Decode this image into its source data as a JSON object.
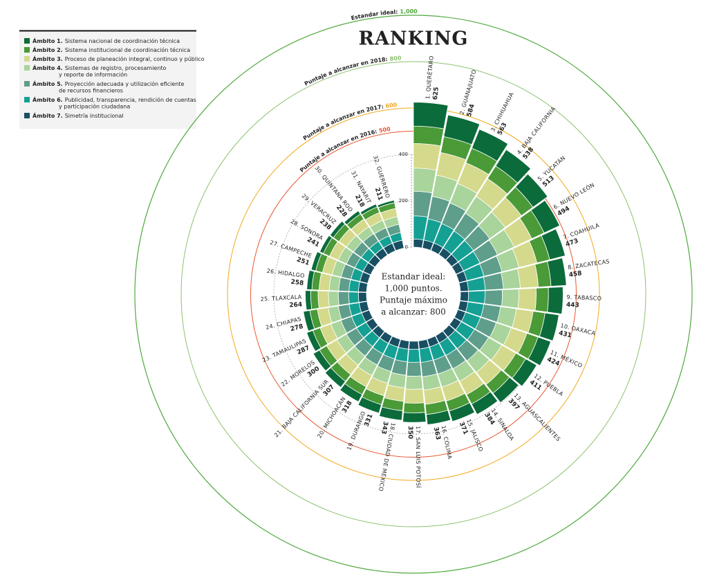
{
  "chart_data": {
    "type": "radial_stacked_bar",
    "title": "RANKING",
    "center_text": [
      "Estandar ideal:",
      "1,000 puntos.",
      "Puntaje máximo",
      "a alcanzar: 800"
    ],
    "categories": [
      "1. QUERÉTARO",
      "2. GUANAJUATO",
      "3. CHIHUAHUA",
      "4. BAJA CALIFORNIA",
      "5. YUCATÁN",
      "6. NUEVO LEÓN",
      "7. COAHUILA",
      "8. ZACATECAS",
      "9. TABASCO",
      "10. OAXACA",
      "11. MÉXICO",
      "12. PUEBLA",
      "13. AGUASCALIENTES",
      "14. SINALOA",
      "15. JALISCO",
      "16. COLIMA",
      "17. SAN LUIS POTOSÍ",
      "18. CIUDAD DE MÉXICO",
      "19. DURANGO",
      "20. MICHOACÁN",
      "21. BAJA CALIFORNIA SUR",
      "22. MORELOS",
      "23. TAMAULIPAS",
      "24. CHIAPAS",
      "25. TLAXCALA",
      "26. HIDALGO",
      "27. CAMPECHE",
      "28. SONORA",
      "29. VERACRUZ",
      "30. QUINTANA ROO",
      "31. NAYARIT",
      "32. GUERRERO"
    ],
    "totals": [
      625,
      584,
      563,
      538,
      513,
      494,
      473,
      458,
      443,
      431,
      424,
      411,
      397,
      384,
      371,
      363,
      350,
      343,
      331,
      318,
      307,
      300,
      287,
      278,
      264,
      258,
      251,
      241,
      238,
      228,
      218,
      211
    ],
    "series": [
      {
        "name": "Ámbito 1.",
        "description": [
          "Sistema nacional de coordinación técnica"
        ],
        "color": "#0b6b3a",
        "values": [
          103,
          95,
          88,
          84,
          78,
          74,
          69,
          66,
          63,
          60,
          58,
          55,
          52,
          51,
          47,
          44,
          41,
          41,
          38,
          35,
          33,
          31,
          28,
          28,
          23,
          22,
          20,
          17,
          18,
          16,
          13,
          11
        ]
      },
      {
        "name": "Ámbito 2.",
        "description": [
          "Sistema institucional de coordinación técnica"
        ],
        "color": "#4a9a37",
        "values": [
          75,
          70,
          68,
          65,
          62,
          59,
          57,
          55,
          53,
          52,
          51,
          49,
          48,
          46,
          45,
          44,
          42,
          41,
          40,
          38,
          37,
          36,
          34,
          33,
          32,
          31,
          30,
          29,
          29,
          27,
          26,
          25
        ]
      },
      {
        "name": "Ámbito 3.",
        "description": [
          "Proceso de planeación integral, continuo y público"
        ],
        "color": "#d5d98b",
        "values": [
          106,
          99,
          96,
          91,
          87,
          84,
          80,
          78,
          75,
          73,
          72,
          70,
          67,
          65,
          63,
          62,
          60,
          58,
          56,
          54,
          52,
          51,
          49,
          47,
          45,
          44,
          43,
          41,
          40,
          39,
          37,
          36
        ]
      },
      {
        "name": "Ámbito 4.",
        "description": [
          "Sistemas de registro, procesamiento",
          "y reporte de información"
        ],
        "color": "#a9d49b",
        "values": [
          100,
          93,
          90,
          86,
          82,
          79,
          76,
          73,
          71,
          69,
          68,
          66,
          64,
          61,
          59,
          58,
          56,
          55,
          53,
          51,
          49,
          48,
          46,
          44,
          42,
          41,
          40,
          39,
          38,
          36,
          35,
          34
        ]
      },
      {
        "name": "Ámbito 5.",
        "description": [
          "Proyección adecuada y utilización eficiente",
          "de recursos financieros"
        ],
        "color": "#5f9e8b",
        "values": [
          106,
          99,
          96,
          91,
          87,
          84,
          80,
          78,
          75,
          73,
          72,
          70,
          67,
          65,
          63,
          62,
          60,
          58,
          56,
          54,
          52,
          51,
          49,
          47,
          45,
          44,
          43,
          41,
          40,
          39,
          37,
          36
        ]
      },
      {
        "name": "Ámbito 6.",
        "description": [
          "Publicidad, transparencia, rendición de cuentas",
          "y participación ciudadana"
        ],
        "color": "#15a094",
        "values": [
          100,
          93,
          90,
          86,
          82,
          79,
          76,
          73,
          71,
          69,
          68,
          66,
          64,
          61,
          59,
          58,
          56,
          55,
          53,
          51,
          49,
          48,
          46,
          44,
          42,
          41,
          40,
          39,
          38,
          36,
          35,
          34
        ]
      },
      {
        "name": "Ámbito 7.",
        "description": [
          "Simetría institucional"
        ],
        "color": "#184f63",
        "values": [
          35,
          35,
          35,
          35,
          35,
          35,
          35,
          35,
          35,
          35,
          35,
          35,
          35,
          35,
          35,
          35,
          35,
          35,
          35,
          35,
          35,
          35,
          35,
          35,
          35,
          35,
          35,
          35,
          35,
          35,
          35,
          35
        ]
      }
    ],
    "rlim": [
      0,
      1000
    ],
    "rticks": [
      0,
      200,
      400
    ],
    "reference_lines": [
      {
        "label": "Puntaje a alcanzar en 2016:",
        "value": 500,
        "color": "#e8552e"
      },
      {
        "label": "Puntaje a alcanzar en 2017:",
        "value": 600,
        "color": "#f2a81d"
      },
      {
        "label": "Puntaje a alcanzar en 2018:",
        "value": 800,
        "color": "#8cc16e"
      },
      {
        "label": "Estandar ideal:",
        "value": 1000,
        "value_label": "1,000",
        "color": "#4fa83d"
      }
    ]
  }
}
